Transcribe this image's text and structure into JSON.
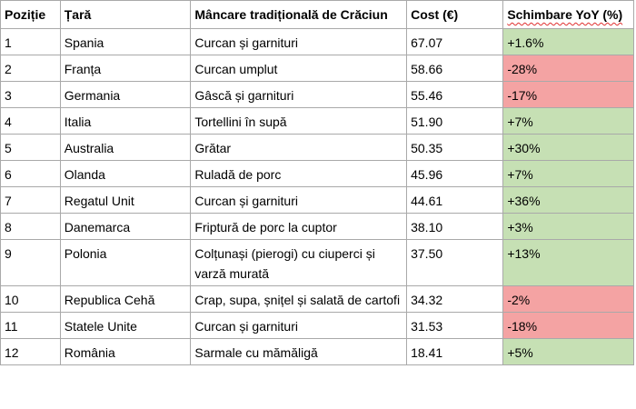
{
  "table": {
    "headers": [
      "Poziție",
      "Țară",
      "Mâncare tradițională de Crăciun",
      "Cost (€)",
      "Schimbare YoY (%)"
    ],
    "rows": [
      {
        "pos": "1",
        "country": "Spania",
        "food": "Curcan și garnituri",
        "cost": "67.07",
        "change": "+1.6%",
        "trend": "up"
      },
      {
        "pos": "2",
        "country": "Franța",
        "food": "Curcan umplut",
        "cost": "58.66",
        "change": "-28%",
        "trend": "down"
      },
      {
        "pos": "3",
        "country": "Germania",
        "food": "Gâscă și garnituri",
        "cost": "55.46",
        "change": "-17%",
        "trend": "down"
      },
      {
        "pos": "4",
        "country": "Italia",
        "food": "Tortellini în supă",
        "cost": "51.90",
        "change": "+7%",
        "trend": "up"
      },
      {
        "pos": "5",
        "country": "Australia",
        "food": "Grătar",
        "cost": "50.35",
        "change": "+30%",
        "trend": "up"
      },
      {
        "pos": "6",
        "country": "Olanda",
        "food": "Ruladă de porc",
        "cost": "45.96",
        "change": "+7%",
        "trend": "up"
      },
      {
        "pos": "7",
        "country": "Regatul Unit",
        "food": "Curcan și garnituri",
        "cost": "44.61",
        "change": "+36%",
        "trend": "up"
      },
      {
        "pos": "8",
        "country": "Danemarca",
        "food": "Friptură de porc la cuptor",
        "cost": "38.10",
        "change": "+3%",
        "trend": "up"
      },
      {
        "pos": "9",
        "country": "Polonia",
        "food": "Colțunași (pierogi) cu ciuperci și varză murată",
        "cost": "37.50",
        "change": "+13%",
        "trend": "up"
      },
      {
        "pos": "10",
        "country": "Republica Cehă",
        "food": "Crap, supa, șnițel și salată de cartofi",
        "cost": "34.32",
        "change": "-2%",
        "trend": "down"
      },
      {
        "pos": "11",
        "country": "Statele Unite",
        "food": "Curcan și garnituri",
        "cost": "31.53",
        "change": "-18%",
        "trend": "down"
      },
      {
        "pos": "12",
        "country": "România",
        "food": "Sarmale cu mămăligă",
        "cost": "18.41",
        "change": "+5%",
        "trend": "up"
      }
    ]
  },
  "colors": {
    "positive": "#c6e0b4",
    "negative": "#f4a3a3",
    "border": "#a9a9a9"
  }
}
